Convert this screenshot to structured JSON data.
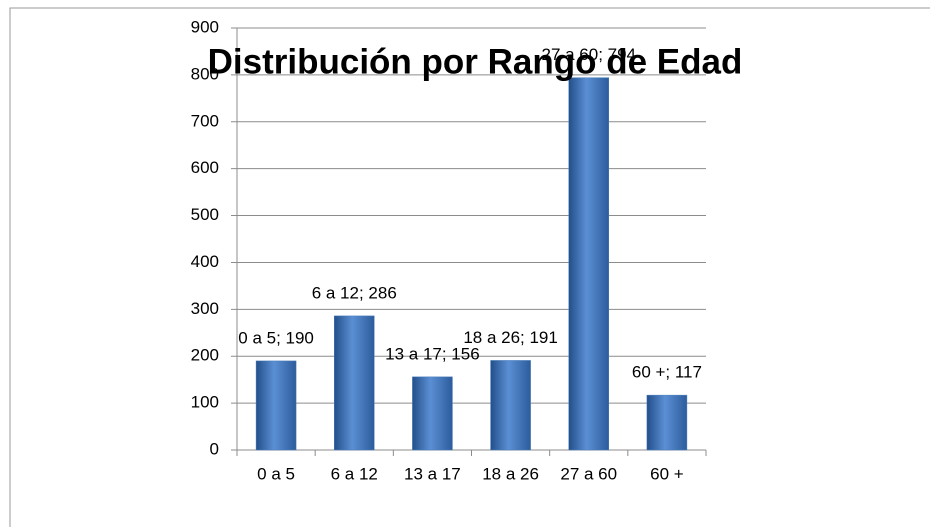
{
  "chart_data": {
    "type": "bar",
    "title": "Distribución por Rango de Edad",
    "categories": [
      "0 a 5",
      "6 a 12",
      "13 a 17",
      "18 a 26",
      "27 a 60",
      "60 +"
    ],
    "values": [
      190,
      286,
      156,
      191,
      794,
      117
    ],
    "value_labels": [
      "0 a 5; 190",
      "6 a 12; 286",
      "13 a 17; 156",
      "18 a 26; 191",
      "27 a 60; 794",
      "60 +; 117"
    ],
    "color": "#4a7ebb",
    "ylim": [
      0,
      900
    ],
    "yticks": [
      0,
      100,
      200,
      300,
      400,
      500,
      600,
      700,
      800,
      900
    ],
    "grid": true
  }
}
